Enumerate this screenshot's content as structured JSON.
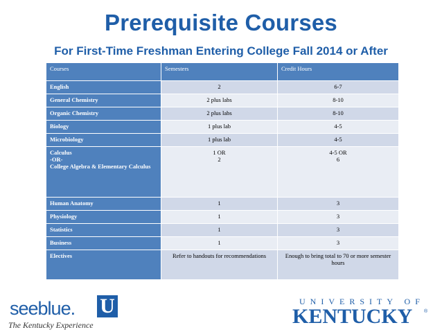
{
  "title": "Prerequisite Courses",
  "subtitle": "For First-Time Freshman Entering College Fall 2014 or After",
  "table": {
    "headers": [
      "Courses",
      "Semesters",
      "Credit Hours"
    ],
    "rows": [
      {
        "course": "English",
        "semesters": "2",
        "credits": "6-7"
      },
      {
        "course": "General Chemistry",
        "semesters": "2 plus labs",
        "credits": "8-10"
      },
      {
        "course": "Organic Chemistry",
        "semesters": "2 plus labs",
        "credits": "8-10"
      },
      {
        "course": "Biology",
        "semesters": "1 plus lab",
        "credits": "4-5"
      },
      {
        "course": "Microbiology",
        "semesters": "1 plus lab",
        "credits": "4-5"
      },
      {
        "course": "Calculus\n-OR-\nCollege Algebra & Elementary Calculus",
        "semesters": "1 OR\n2",
        "credits": "4-5 OR\n6"
      },
      {
        "course": "Human Anatomy",
        "semesters": "1",
        "credits": "3"
      },
      {
        "course": "Physiology",
        "semesters": "1",
        "credits": "3"
      },
      {
        "course": "Statistics",
        "semesters": "1",
        "credits": "3"
      },
      {
        "course": "Business",
        "semesters": "1",
        "credits": "3"
      },
      {
        "course": "Electives",
        "semesters": "Refer to handouts for recommendations",
        "credits": "Enough to bring total to 70 or more semester hours"
      }
    ]
  },
  "logos": {
    "seeblue_text": "seeblue.",
    "seeblue_u": "U",
    "tagline": "The Kentucky Experience",
    "univ_top": "UNIVERSITY OF",
    "univ_main": "KENTUCKY",
    "reg_mark": "®"
  },
  "colors": {
    "brand_blue": "#1f5ea8",
    "header_blue": "#4f81bd",
    "row_dark": "#d0d8e8",
    "row_light": "#e9edf4"
  }
}
